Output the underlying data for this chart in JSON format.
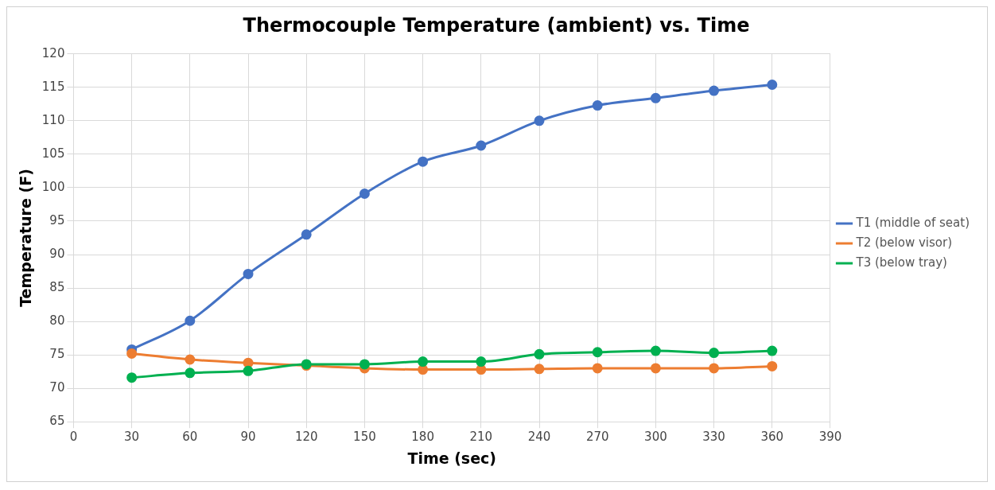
{
  "chart_data": {
    "type": "line",
    "title": "Thermocouple Temperature (ambient) vs. Time",
    "xlabel": "Time (sec)",
    "ylabel": "Temperature (F)",
    "x": [
      30,
      60,
      90,
      120,
      150,
      180,
      210,
      240,
      270,
      300,
      330,
      360
    ],
    "series": [
      {
        "name": "T1 (middle of seat)",
        "color": "#4472c4",
        "values": [
          75.8,
          80.1,
          87.1,
          93,
          99.1,
          103.9,
          106.3,
          110,
          112.3,
          113.4,
          114.5,
          115.4
        ]
      },
      {
        "name": "T2 (below visor)",
        "color": "#ed7d31",
        "values": [
          75.2,
          74.3,
          73.8,
          73.4,
          73,
          72.8,
          72.8,
          72.9,
          73,
          73,
          73,
          73.3
        ]
      },
      {
        "name": "T3 (below tray)",
        "color": "#00b050",
        "values": [
          71.6,
          72.3,
          72.6,
          73.6,
          73.6,
          74,
          74,
          75.1,
          75.4,
          75.6,
          75.3,
          75.6
        ]
      }
    ],
    "xlim": [
      0,
      390
    ],
    "xticks": [
      0,
      30,
      60,
      90,
      120,
      150,
      180,
      210,
      240,
      270,
      300,
      330,
      360,
      390
    ],
    "ylim": [
      65,
      120
    ],
    "yticks": [
      65,
      70,
      75,
      80,
      85,
      90,
      95,
      100,
      105,
      110,
      115,
      120
    ],
    "grid": true,
    "legend": "right",
    "marker": "circle",
    "line_style": "solid"
  }
}
